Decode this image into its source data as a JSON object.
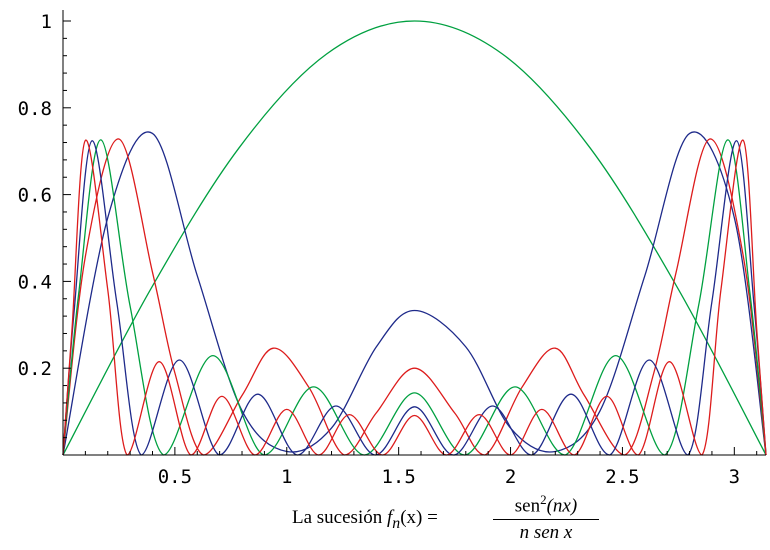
{
  "chart_data": {
    "type": "line",
    "title": "",
    "xlabel": "",
    "ylabel": "",
    "function": "f_n(x) = sen^2(n x) / (n sen x)",
    "xlim": [
      0,
      3.14159
    ],
    "ylim": [
      0,
      1
    ],
    "x_ticks": [
      "0.5",
      "1",
      "1.5",
      "2",
      "2.5",
      "3"
    ],
    "x_tick_values": [
      0.5,
      1,
      1.5,
      2,
      2.5,
      3
    ],
    "y_ticks": [
      "0.2",
      "0.4",
      "0.6",
      "0.8",
      "1"
    ],
    "y_tick_values": [
      0.2,
      0.4,
      0.6,
      0.8,
      1
    ],
    "series": [
      {
        "n": 1,
        "color": "#00a040",
        "x": [
          0,
          0.3927,
          0.7854,
          1.1781,
          1.5708,
          1.9635,
          2.3562,
          2.7489,
          3.1416
        ],
        "values": [
          0,
          0.383,
          0.707,
          0.924,
          1.0,
          0.924,
          0.707,
          0.383,
          0
        ]
      },
      {
        "n": 3,
        "color": "#1e2a8a",
        "x": [
          0,
          0.2,
          0.4,
          0.6,
          0.8,
          1.0,
          1.2,
          1.4,
          1.5708,
          1.8,
          2.0,
          2.2,
          2.4,
          2.6,
          2.8,
          3.0,
          3.1416
        ],
        "values": [
          0,
          0.547,
          0.741,
          0.413,
          0.102,
          0.008,
          0.062,
          0.249,
          0.333,
          0.249,
          0.062,
          0.008,
          0.102,
          0.413,
          0.741,
          0.547,
          0
        ]
      },
      {
        "n": 5,
        "color": "#dd1c1c",
        "x": [
          0,
          0.1,
          0.25,
          0.4,
          0.5,
          0.628,
          0.8,
          0.94,
          1.1,
          1.257,
          1.4,
          1.5708,
          1.75,
          1.885,
          2.05,
          2.2,
          2.33,
          2.51,
          2.64,
          2.74,
          2.89,
          3.04,
          3.1416
        ],
        "values": [
          0,
          0.458,
          0.728,
          0.421,
          0.189,
          0,
          0.137,
          0.246,
          0.155,
          0,
          0.097,
          0.2,
          0.097,
          0,
          0.155,
          0.246,
          0.137,
          0,
          0.189,
          0.421,
          0.728,
          0.458,
          0
        ]
      },
      {
        "n": 7,
        "color": "#00a040",
        "x": [
          0,
          0.07,
          0.17,
          0.3,
          0.449,
          0.67,
          0.898,
          1.12,
          1.346,
          1.5708,
          1.795,
          2.02,
          2.244,
          2.47,
          2.69,
          2.84,
          2.97,
          3.07,
          3.1416
        ],
        "values": [
          0,
          0.372,
          0.726,
          0.343,
          0,
          0.229,
          0,
          0.157,
          0,
          0.143,
          0,
          0.157,
          0,
          0.229,
          0,
          0.343,
          0.726,
          0.372,
          0
        ]
      },
      {
        "n": 9,
        "color": "#1e2a8a",
        "x": [
          0,
          0.05,
          0.13,
          0.24,
          0.349,
          0.52,
          0.698,
          0.87,
          1.047,
          1.22,
          1.396,
          1.5708,
          1.745,
          1.92,
          2.094,
          2.27,
          2.443,
          2.62,
          2.793,
          2.9,
          3.01,
          3.09,
          3.1416
        ],
        "values": [
          0,
          0.333,
          0.724,
          0.353,
          0,
          0.219,
          0,
          0.14,
          0,
          0.113,
          0,
          0.111,
          0,
          0.113,
          0,
          0.14,
          0,
          0.219,
          0,
          0.353,
          0.724,
          0.333,
          0
        ]
      },
      {
        "n": 11,
        "color": "#dd1c1c",
        "x": [
          0,
          0.04,
          0.1,
          0.2,
          0.286,
          0.43,
          0.571,
          0.71,
          0.857,
          1.0,
          1.142,
          1.28,
          1.428,
          1.5708,
          1.714,
          1.86,
          2.0,
          2.14,
          2.285,
          2.43,
          2.571,
          2.71,
          2.856,
          2.94,
          3.04,
          3.1,
          3.1416
        ],
        "values": [
          0,
          0.29,
          0.725,
          0.38,
          0,
          0.215,
          0,
          0.135,
          0,
          0.105,
          0,
          0.093,
          0,
          0.091,
          0,
          0.093,
          0,
          0.105,
          0,
          0.135,
          0,
          0.215,
          0,
          0.38,
          0.725,
          0.29,
          0
        ]
      }
    ],
    "caption_prefix": "La sucesión ",
    "caption_fn": "f",
    "caption_sub": "n",
    "caption_arg": "(x) =",
    "caption_num_main": "sen",
    "caption_num_sup": "2",
    "caption_num_arg": "(nx)",
    "caption_den": "n sen x"
  }
}
